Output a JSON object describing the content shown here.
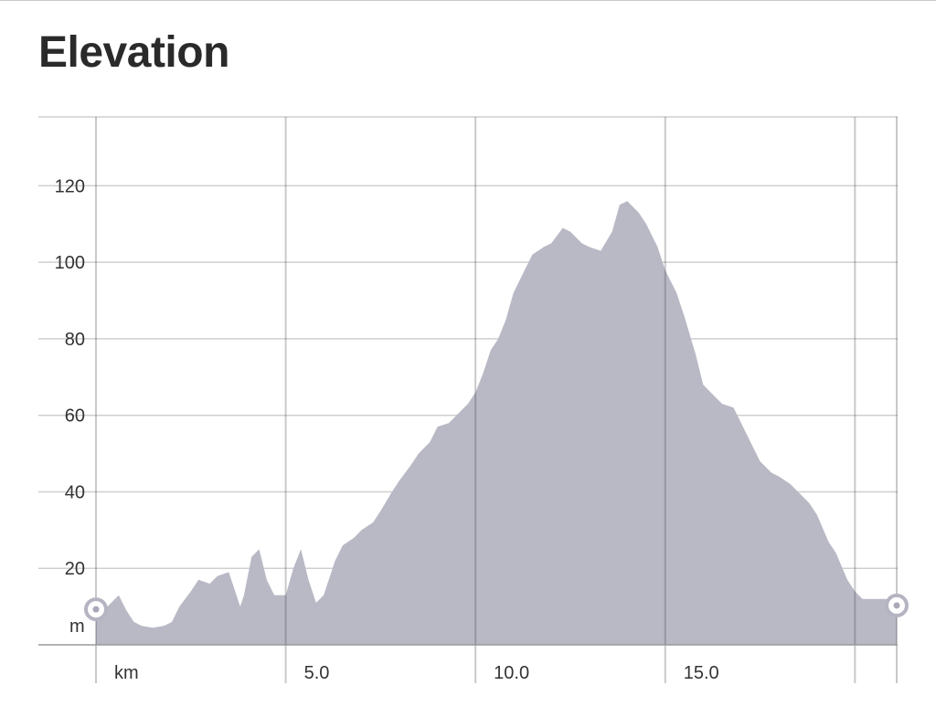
{
  "page": {
    "title": "Elevation"
  },
  "chart_data": {
    "type": "area",
    "title": "Elevation",
    "xlabel": "km",
    "ylabel": "m",
    "xlim": [
      0,
      21.1
    ],
    "ylim": [
      0,
      138
    ],
    "x_ticks": [
      5,
      10,
      15
    ],
    "x_tick_labels": [
      "5.0",
      "10.0",
      "15.0"
    ],
    "y_ticks": [
      20,
      40,
      60,
      80,
      100,
      120
    ],
    "y_tick_labels": [
      "20",
      "40",
      "60",
      "80",
      "100",
      "120"
    ],
    "grid": true,
    "fill_color": "#b9b9c6",
    "grid_color": "#cfcfcf",
    "series": [
      {
        "x": [
          0.0,
          0.3,
          0.6,
          0.8,
          1.0,
          1.2,
          1.5,
          1.8,
          2.0,
          2.2,
          2.5,
          2.7,
          3.0,
          3.2,
          3.5,
          3.8,
          3.9,
          4.1,
          4.3,
          4.5,
          4.6,
          4.7,
          5.0,
          5.2,
          5.4,
          5.6,
          5.8,
          6.0,
          6.3,
          6.5,
          6.8,
          7.0,
          7.3,
          7.5,
          7.8,
          8.0,
          8.3,
          8.5,
          8.8,
          9.0,
          9.3,
          9.5,
          9.8,
          10.0,
          10.2,
          10.4,
          10.6,
          10.8,
          11.0,
          11.3,
          11.5,
          11.8,
          12.0,
          12.3,
          12.5,
          12.8,
          13.0,
          13.3,
          13.6,
          13.8,
          14.0,
          14.3,
          14.5,
          14.8,
          15.0,
          15.3,
          15.5,
          15.8,
          16.0,
          16.3,
          16.5,
          16.8,
          17.0,
          17.3,
          17.5,
          17.8,
          18.0,
          18.3,
          18.5,
          18.8,
          19.0,
          19.3,
          19.5,
          19.8,
          20.0,
          20.2,
          20.4,
          20.6,
          20.8,
          21.1
        ],
        "y": [
          10,
          10,
          13,
          9,
          6,
          5,
          4.5,
          5,
          6,
          10,
          14,
          17,
          16,
          18,
          19,
          10,
          13,
          23,
          25,
          17,
          15,
          13,
          13,
          20,
          25,
          17,
          11,
          13,
          22,
          26,
          28,
          30,
          32,
          35,
          40,
          43,
          47,
          50,
          53,
          57,
          58,
          60,
          63,
          66,
          71,
          77,
          80,
          85,
          92,
          98,
          102,
          104,
          105,
          109,
          108,
          105,
          104,
          103,
          108,
          115,
          116,
          113,
          110,
          104,
          98,
          92,
          86,
          76,
          68,
          65,
          63,
          62,
          58,
          52,
          48,
          45,
          44,
          42,
          40,
          37,
          34,
          27,
          24,
          17,
          14,
          12,
          12,
          12,
          12,
          11
        ]
      }
    ],
    "markers": [
      "start",
      "end"
    ]
  }
}
